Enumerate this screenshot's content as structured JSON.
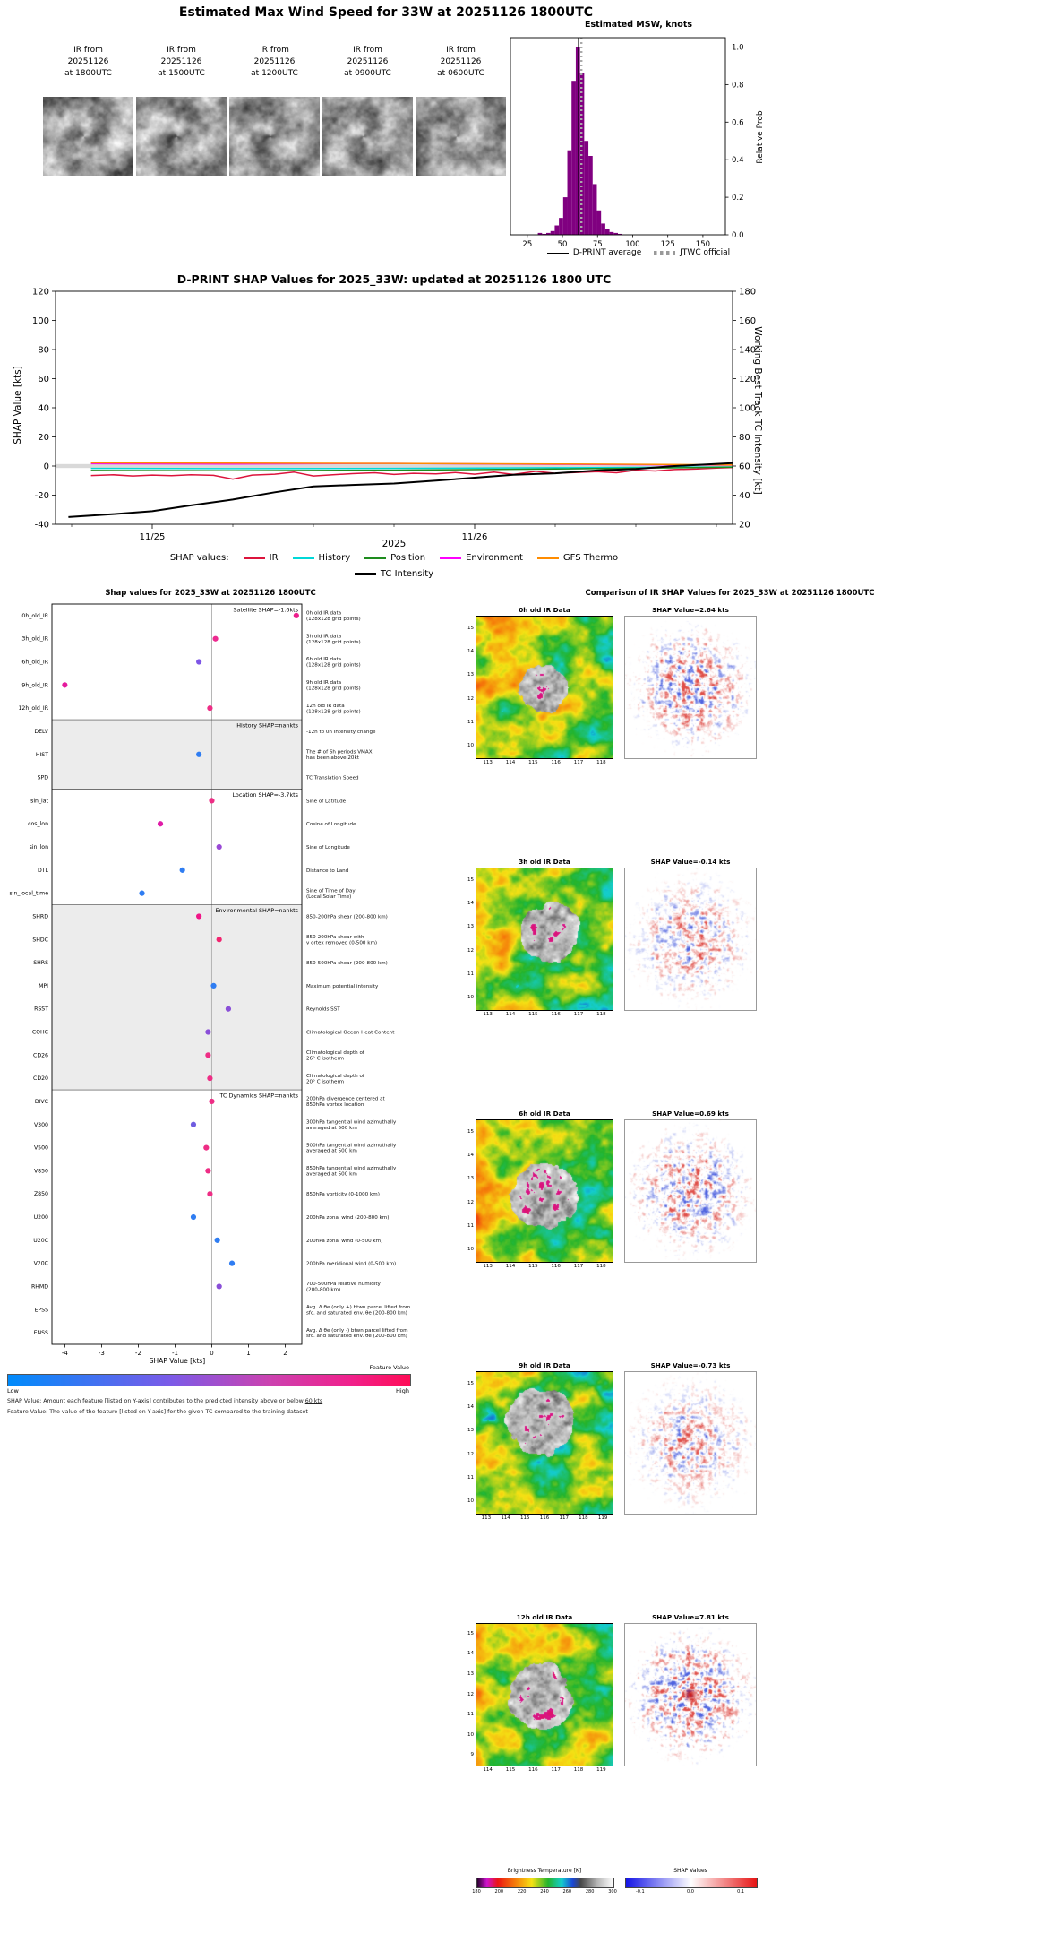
{
  "figure": {
    "suptitle": "Estimated Max Wind Speed for 33W at 20251126 1800UTC",
    "ir_thumbs": [
      {
        "lines": [
          "IR from",
          "20251126",
          "at 1800UTC"
        ]
      },
      {
        "lines": [
          "IR from",
          "20251126",
          "at 1500UTC"
        ]
      },
      {
        "lines": [
          "IR from",
          "20251126",
          "at 1200UTC"
        ]
      },
      {
        "lines": [
          "IR from",
          "20251126",
          "at 0900UTC"
        ]
      },
      {
        "lines": [
          "IR from",
          "20251126",
          "at 0600UTC"
        ]
      }
    ]
  },
  "chart_data": [
    {
      "id": "msw_histogram",
      "type": "bar",
      "title": "Estimated MSW, knots",
      "ylabel": "Relative Prob",
      "xlim": [
        13,
        166
      ],
      "ylim": [
        0,
        1.05
      ],
      "x_ticks": [
        25,
        50,
        75,
        100,
        125,
        150
      ],
      "y_ticks": [
        0.0,
        0.2,
        0.4,
        0.6,
        0.8,
        1.0
      ],
      "bar_color": "#800080",
      "bin_width": 3,
      "bin_centers": [
        34,
        37,
        40,
        43,
        46,
        49,
        52,
        55,
        58,
        61,
        64,
        67,
        70,
        73,
        76,
        79,
        82,
        85,
        88,
        91
      ],
      "values": [
        0.01,
        0.005,
        0.01,
        0.02,
        0.05,
        0.09,
        0.2,
        0.45,
        0.82,
        1.0,
        0.86,
        0.5,
        0.42,
        0.27,
        0.13,
        0.06,
        0.03,
        0.015,
        0.01,
        0.005
      ],
      "vlines": [
        {
          "x": 61.5,
          "style": "solid",
          "color": "#000000",
          "label": "D-PRINT average"
        },
        {
          "x": 63.5,
          "style": "dashed",
          "color": "#aaaaaa",
          "label": "JTWC official"
        }
      ],
      "legend": {
        "dprint": "D-PRINT average",
        "jtwc": "JTWC official"
      }
    },
    {
      "id": "shap_timeseries",
      "type": "line",
      "title": "D-PRINT SHAP Values for 2025_33W: updated at 20251126 1800 UTC",
      "ylabel_left": "SHAP Value [kts]",
      "ylabel_right": "Working Best Track TC Intensity [kt]",
      "xlabel": "2025",
      "ylim_left": [
        -40,
        120
      ],
      "ylim_right": [
        20,
        180
      ],
      "y_ticks_left": [
        120,
        100,
        80,
        60,
        40,
        20,
        0,
        -20,
        -40
      ],
      "y_ticks_right": [
        180,
        160,
        140,
        120,
        100,
        80,
        60,
        40,
        20
      ],
      "xlim_days": [
        -0.3,
        1.8
      ],
      "x_ticks": [
        {
          "t": 0,
          "label": "11/25"
        },
        {
          "t": 1,
          "label": "11/26"
        }
      ],
      "legend_prefix": "SHAP values:",
      "series": [
        {
          "name": "IR",
          "color": "#dc143c",
          "axis": "left",
          "x": [
            -0.19,
            -0.12,
            -0.06,
            0,
            0.06,
            0.12,
            0.19,
            0.25,
            0.31,
            0.38,
            0.44,
            0.5,
            0.56,
            0.62,
            0.69,
            0.75,
            0.81,
            0.88,
            0.94,
            1.0,
            1.06,
            1.12,
            1.19,
            1.25,
            1.31,
            1.38,
            1.44,
            1.5,
            1.56,
            1.62,
            1.69,
            1.75,
            1.8
          ],
          "y": [
            -6.5,
            -6.0,
            -6.8,
            -6.2,
            -6.6,
            -6.0,
            -6.4,
            -9.0,
            -6.2,
            -5.6,
            -4.2,
            -6.8,
            -6.0,
            -5.2,
            -4.6,
            -5.8,
            -5.0,
            -5.4,
            -4.4,
            -5.6,
            -4.2,
            -5.8,
            -3.6,
            -5.0,
            -4.4,
            -3.8,
            -4.6,
            -2.8,
            -3.4,
            -2.4,
            -2.0,
            -1.4,
            -1.0
          ]
        },
        {
          "name": "History",
          "color": "#00d8d8",
          "axis": "left",
          "x": [
            -0.19,
            0.25,
            0.75,
            1.25,
            1.8
          ],
          "y": [
            -1.6,
            -1.8,
            -1.6,
            -1.2,
            -0.6
          ]
        },
        {
          "name": "Position",
          "color": "#1e8c1e",
          "axis": "left",
          "x": [
            -0.19,
            0.25,
            0.75,
            1.25,
            1.8
          ],
          "y": [
            -3.0,
            -3.2,
            -2.8,
            -2.0,
            -0.8
          ]
        },
        {
          "name": "Environment",
          "color": "#ff00ff",
          "axis": "left",
          "x": [
            -0.19,
            0.25,
            0.75,
            1.25,
            1.8
          ],
          "y": [
            1.6,
            1.4,
            1.8,
            1.2,
            0.6
          ]
        },
        {
          "name": "GFS Thermo",
          "color": "#ff8c00",
          "axis": "left",
          "x": [
            -0.19,
            0.25,
            0.75,
            1.25,
            1.8
          ],
          "y": [
            2.2,
            2.0,
            1.8,
            1.4,
            0.8
          ]
        },
        {
          "name": "TC Intensity",
          "color": "#000000",
          "axis": "right",
          "x": [
            -0.26,
            -0.12,
            0,
            0.12,
            0.25,
            0.38,
            0.5,
            0.62,
            0.75,
            0.88,
            1.0,
            1.12,
            1.25,
            1.38,
            1.5,
            1.62,
            1.8
          ],
          "y": [
            25,
            27,
            29,
            33,
            37,
            42,
            46,
            47,
            48,
            50,
            52,
            54,
            55,
            57,
            58,
            60,
            62
          ]
        }
      ]
    },
    {
      "id": "shap_features",
      "type": "scatter",
      "title": "Shap values for 2025_33W at 20251126 1800UTC",
      "xlabel": "SHAP Value [kts]",
      "xlim": [
        -4.35,
        2.45
      ],
      "x_ticks": [
        -4,
        -3,
        -2,
        -1,
        0,
        1,
        2
      ],
      "sections": [
        {
          "label": "Satellite SHAP=-1.6kts",
          "start": 0,
          "end": 4,
          "shaded": false
        },
        {
          "label": "History SHAP=nankts",
          "start": 5,
          "end": 7,
          "shaded": true
        },
        {
          "label": "Location SHAP=-3.7kts",
          "start": 8,
          "end": 12,
          "shaded": false
        },
        {
          "label": "Environmental SHAP=nankts",
          "start": 13,
          "end": 20,
          "shaded": true
        },
        {
          "label": "TC Dynamics SHAP=nankts",
          "start": 21,
          "end": 31,
          "shaded": false
        }
      ],
      "features": [
        {
          "name": "0h_old_IR",
          "desc": [
            "0h old IR data",
            "(128x128 grid points)"
          ],
          "value": 2.3,
          "color": "#ed1e8c"
        },
        {
          "name": "3h_old_IR",
          "desc": [
            "3h old IR data",
            "(128x128 grid points)"
          ],
          "value": 0.1,
          "color": "#ed2a90"
        },
        {
          "name": "6h_old_IR",
          "desc": [
            "6h old IR data",
            "(128x128 grid points)"
          ],
          "value": -0.35,
          "color": "#7d55e6"
        },
        {
          "name": "9h_old_IR",
          "desc": [
            "9h old IR data",
            "(128x128 grid points)"
          ],
          "value": -4.0,
          "color": "#e51b9d"
        },
        {
          "name": "12h_old_IR",
          "desc": [
            "12h old IR data",
            "(128x128 grid points)"
          ],
          "value": -0.05,
          "color": "#ee2d85"
        },
        {
          "name": "DELV",
          "desc": [
            "-12h to 0h Intensity change"
          ],
          "value": null,
          "color": null
        },
        {
          "name": "HIST",
          "desc": [
            "The # of 6h periods VMAX",
            "has been above 20kt"
          ],
          "value": -0.35,
          "color": "#2f7df2"
        },
        {
          "name": "SPD",
          "desc": [
            "TC Translation Speed"
          ],
          "value": null,
          "color": null
        },
        {
          "name": "sin_lat",
          "desc": [
            "Sine of Latitude"
          ],
          "value": 0.0,
          "color": "#ee2d85"
        },
        {
          "name": "cos_lon",
          "desc": [
            "Cosine of Longitude"
          ],
          "value": -1.4,
          "color": "#e01ca8"
        },
        {
          "name": "sin_lon",
          "desc": [
            "Sine of Longitude"
          ],
          "value": 0.2,
          "color": "#9a49d6"
        },
        {
          "name": "DTL",
          "desc": [
            "Distance to Land"
          ],
          "value": -0.8,
          "color": "#2f7df2"
        },
        {
          "name": "sin_local_time",
          "desc": [
            "Sine of Time of Day",
            "(Local Solar Time)"
          ],
          "value": -1.9,
          "color": "#2f7df2"
        },
        {
          "name": "SHRD",
          "desc": [
            "850-200hPa shear (200-800 km)"
          ],
          "value": -0.35,
          "color": "#f01688"
        },
        {
          "name": "SHDC",
          "desc": [
            "850-200hPa shear with",
            "v ortex removed (0-500 km)"
          ],
          "value": 0.2,
          "color": "#f2246f"
        },
        {
          "name": "SHRS",
          "desc": [
            "850-500hPa shear (200-800 km)"
          ],
          "value": null,
          "color": null
        },
        {
          "name": "MPI",
          "desc": [
            "Maximum potential intensity"
          ],
          "value": 0.05,
          "color": "#2f7df2"
        },
        {
          "name": "RSST",
          "desc": [
            "Reynolds SST"
          ],
          "value": 0.45,
          "color": "#8a4fd8"
        },
        {
          "name": "COHC",
          "desc": [
            "Climatological Ocean Heat Content"
          ],
          "value": -0.1,
          "color": "#8a4fd8"
        },
        {
          "name": "CD26",
          "desc": [
            "Climatological depth of",
            "26° C isotherm"
          ],
          "value": -0.1,
          "color": "#ee2d85"
        },
        {
          "name": "CD20",
          "desc": [
            "Climatological depth of",
            "20° C isotherm"
          ],
          "value": -0.05,
          "color": "#ee2d85"
        },
        {
          "name": "DIVC",
          "desc": [
            "200hPa divergence centered at",
            "850hPa vortex location"
          ],
          "value": 0.0,
          "color": "#ee2d85"
        },
        {
          "name": "V300",
          "desc": [
            "300hPa tangential wind azimuthally",
            "averaged at 500 km"
          ],
          "value": -0.5,
          "color": "#6f5ce0"
        },
        {
          "name": "V500",
          "desc": [
            "500hPa tangential wind azimuthally",
            "averaged at 500 km"
          ],
          "value": -0.15,
          "color": "#ee2d85"
        },
        {
          "name": "V850",
          "desc": [
            "850hPa tangential wind azimuthally",
            "averaged at 500 km"
          ],
          "value": -0.1,
          "color": "#ee2d85"
        },
        {
          "name": "Z850",
          "desc": [
            "850hPa vorticity (0-1000 km)"
          ],
          "value": -0.05,
          "color": "#ee2d85"
        },
        {
          "name": "U200",
          "desc": [
            "200hPa zonal wind (200-800 km)"
          ],
          "value": -0.5,
          "color": "#2f7df2"
        },
        {
          "name": "U20C",
          "desc": [
            "200hPa zonal wind (0-500 km)"
          ],
          "value": 0.15,
          "color": "#2f7df2"
        },
        {
          "name": "V20C",
          "desc": [
            "200hPa meridional wind (0-500 km)"
          ],
          "value": 0.55,
          "color": "#2f7df2"
        },
        {
          "name": "RHMD",
          "desc": [
            "700-500hPa relative humidity",
            "(200-800 km)"
          ],
          "value": 0.2,
          "color": "#8a4fd8"
        },
        {
          "name": "EPSS",
          "desc": [
            "Avg. Δ θe (only +) btwn parcel lifted from",
            "sfc. and saturated env. θe (200-800 km)"
          ],
          "value": null,
          "color": null
        },
        {
          "name": "ENSS",
          "desc": [
            "Avg. Δ θe (only -) btwn parcel lifted from",
            "sfc. and saturated env. θe (200-800 km)"
          ],
          "value": null,
          "color": null
        }
      ],
      "colorbar": {
        "title": "Feature Value",
        "low": "Low",
        "high": "High",
        "low_color": "#008bfb",
        "high_color": "#ff0d57"
      },
      "footnote1_text": "SHAP Value: Amount each feature [listed on Y-axis] contributes to the predicted intensity above or below ",
      "footnote1_underline": "60 kts",
      "footnote2": "Feature Value: The value of the feature [listed on Y-axis] for the given TC compared to the training dataset"
    },
    {
      "id": "ir_shap_comparison",
      "type": "heatmap",
      "title": "Comparison of IR SHAP Values for 2025_33W at 20251126 1800UTC",
      "rows": [
        {
          "ir_title": "0h old IR Data",
          "shap_title": "SHAP Value=2.64 kts",
          "shap_value_kts": 2.64,
          "lon_ticks": [
            113,
            114,
            115,
            116,
            117,
            118
          ],
          "lat_ticks": [
            10,
            11,
            12,
            13,
            14,
            15
          ],
          "lon_range": [
            112.5,
            118.5
          ],
          "lat_range": [
            9.5,
            15.5
          ]
        },
        {
          "ir_title": "3h old IR Data",
          "shap_title": "SHAP Value=-0.14 kts",
          "shap_value_kts": -0.14,
          "lon_ticks": [
            113,
            114,
            115,
            116,
            117,
            118
          ],
          "lat_ticks": [
            10,
            11,
            12,
            13,
            14,
            15
          ],
          "lon_range": [
            112.5,
            118.5
          ],
          "lat_range": [
            9.5,
            15.5
          ]
        },
        {
          "ir_title": "6h old IR Data",
          "shap_title": "SHAP Value=0.69 kts",
          "shap_value_kts": 0.69,
          "lon_ticks": [
            113,
            114,
            115,
            116,
            117,
            118
          ],
          "lat_ticks": [
            10,
            11,
            12,
            13,
            14,
            15
          ],
          "lon_range": [
            112.5,
            118.5
          ],
          "lat_range": [
            9.5,
            15.5
          ]
        },
        {
          "ir_title": "9h old IR Data",
          "shap_title": "SHAP Value=-0.73 kts",
          "shap_value_kts": -0.73,
          "lon_ticks": [
            113,
            114,
            115,
            116,
            117,
            118,
            119
          ],
          "lat_ticks": [
            10,
            11,
            12,
            13,
            14,
            15
          ],
          "lon_range": [
            112.5,
            119.5
          ],
          "lat_range": [
            9.5,
            15.5
          ]
        },
        {
          "ir_title": "12h old IR Data",
          "shap_title": "SHAP Value=7.81 kts",
          "shap_value_kts": 7.81,
          "lon_ticks": [
            114,
            115,
            116,
            117,
            118,
            119
          ],
          "lat_ticks": [
            9,
            10,
            11,
            12,
            13,
            14,
            15
          ],
          "lon_range": [
            113.5,
            119.5
          ],
          "lat_range": [
            8.5,
            15.5
          ]
        }
      ],
      "bt_colorbar": {
        "title": "Brightness Temperature [K]",
        "ticks": [
          180,
          200,
          220,
          240,
          260,
          280,
          300
        ]
      },
      "shap_colorbar": {
        "title": "SHAP Values",
        "ticks": [
          -0.1,
          0.0,
          0.1
        ]
      }
    }
  ]
}
